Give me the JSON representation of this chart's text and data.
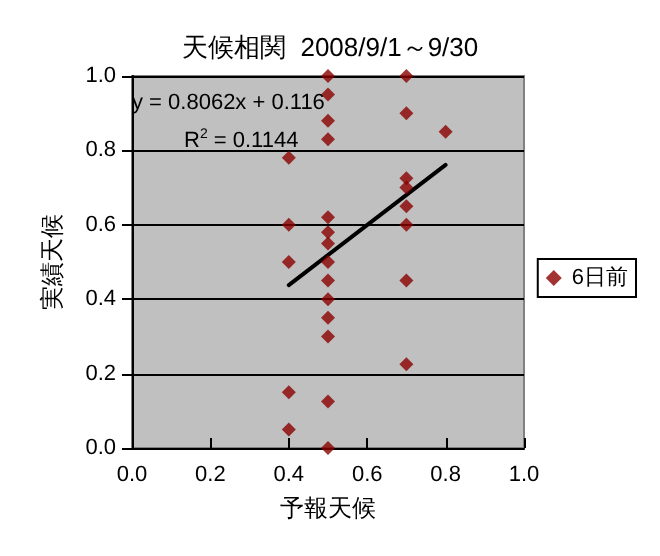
{
  "chart_data": {
    "type": "scatter",
    "title": "天候相関  2008/9/1～9/30",
    "xlabel": "予報天候",
    "ylabel": "実績天候",
    "annotations": [
      "y = 0.8062x + 0.116",
      "R$^{2}$ = 0.1144"
    ],
    "series": [
      {
        "name": "6日前",
        "color": "#8b0000",
        "marker": "diamond",
        "x": [
          0.4,
          0.4,
          0.4,
          0.4,
          0.4,
          0.5,
          0.5,
          0.5,
          0.5,
          0.5,
          0.5,
          0.5,
          0.5,
          0.5,
          0.5,
          0.5,
          0.5,
          0.5,
          0.5,
          0.7,
          0.7,
          0.7,
          0.7,
          0.7,
          0.7,
          0.7,
          0.7,
          0.8
        ],
        "values": [
          0.78,
          0.6,
          0.5,
          0.15,
          0.05,
          1.0,
          0.95,
          0.88,
          0.83,
          0.62,
          0.58,
          0.55,
          0.5,
          0.45,
          0.4,
          0.35,
          0.3,
          0.125,
          0,
          1.0,
          0.9,
          0.725,
          0.7,
          0.65,
          0.6,
          0.45,
          0.225,
          0.85
        ]
      },
      {
        "type": "line",
        "color": "#000000",
        "marker": "none",
        "x": [
          0.4,
          0.8
        ],
        "values": [
          0.438,
          0.761
        ]
      }
    ],
    "xlim": [
      0,
      1
    ],
    "xticks": [
      {
        "value": 0,
        "label": "0.0"
      },
      {
        "value": 0.2,
        "label": "0.2"
      },
      {
        "value": 0.4,
        "label": "0.4"
      },
      {
        "value": 0.6,
        "label": "0.6"
      },
      {
        "value": 0.8,
        "label": "0.8"
      },
      {
        "value": 1,
        "label": "1.0"
      }
    ],
    "ylim": [
      0,
      1
    ],
    "yticks": [
      {
        "value": 0,
        "label": "0.0"
      },
      {
        "value": 0.2,
        "label": "0.2"
      },
      {
        "value": 0.4,
        "label": "0.4"
      },
      {
        "value": 0.6,
        "label": "0.6"
      },
      {
        "value": 0.8,
        "label": "0.8"
      },
      {
        "value": 1,
        "label": "1.0"
      }
    ],
    "grid": "y",
    "legend": "right"
  }
}
